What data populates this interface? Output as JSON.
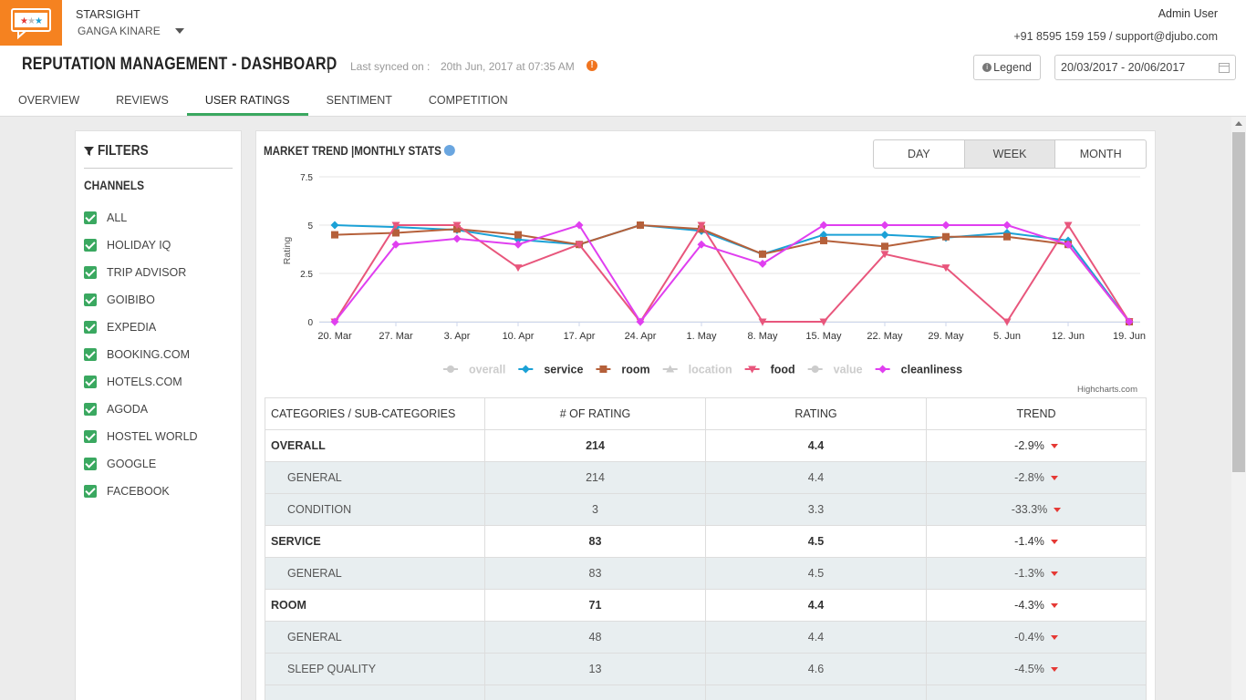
{
  "header": {
    "brand": "STARSIGHT",
    "property": "GANGA KINARE",
    "user": "Admin User",
    "contact": "+91 8595 159 159 / support@djubo.com"
  },
  "title": {
    "text": "REPUTATION MANAGEMENT - DASHBOARD",
    "sync_label": "Last synced on :",
    "sync_time": "20th Jun, 2017 at 07:35 AM"
  },
  "buttons": {
    "legend": "Legend",
    "date_range": "20/03/2017 - 20/06/2017"
  },
  "tabs": [
    {
      "label": "OVERVIEW",
      "active": false
    },
    {
      "label": "REVIEWS",
      "active": false
    },
    {
      "label": "USER RATINGS",
      "active": true
    },
    {
      "label": "SENTIMENT",
      "active": false
    },
    {
      "label": "COMPETITION",
      "active": false
    }
  ],
  "filters": {
    "title": "FILTERS",
    "section": "CHANNELS",
    "channels": [
      "ALL",
      "HOLIDAY IQ",
      "TRIP ADVISOR",
      "GOIBIBO",
      "EXPEDIA",
      "BOOKING.COM",
      "HOTELS.COM",
      "AGODA",
      "HOSTEL WORLD",
      "GOOGLE",
      "FACEBOOK"
    ]
  },
  "chart_data": {
    "type": "line",
    "title": "MARKET TREND |MONTHLY STATS",
    "y_label": "Rating",
    "credit": "Highcharts.com",
    "range_buttons": [
      {
        "label": "DAY",
        "active": false
      },
      {
        "label": "WEEK",
        "active": true
      },
      {
        "label": "MONTH",
        "active": false
      }
    ],
    "categories": [
      "20. Mar",
      "27. Mar",
      "3. Apr",
      "10. Apr",
      "17. Apr",
      "24. Apr",
      "1. May",
      "8. May",
      "15. May",
      "22. May",
      "29. May",
      "5. Jun",
      "12. Jun",
      "19. Jun"
    ],
    "ylim": [
      0,
      7.5
    ],
    "yticks": [
      0,
      2.5,
      5,
      7.5
    ],
    "grid": true,
    "series": [
      {
        "name": "overall",
        "visible": false,
        "marker": "circle"
      },
      {
        "name": "service",
        "visible": true,
        "marker": "diamond",
        "color": "#1ba1d6",
        "values": [
          5.0,
          4.9,
          4.75,
          4.25,
          4.0,
          5.0,
          4.7,
          3.5,
          4.5,
          4.5,
          4.35,
          4.6,
          4.2,
          0
        ]
      },
      {
        "name": "room",
        "visible": true,
        "marker": "square",
        "color": "#b5603a",
        "values": [
          4.5,
          4.6,
          4.8,
          4.5,
          4.0,
          5.0,
          4.8,
          3.5,
          4.2,
          3.9,
          4.4,
          4.4,
          4.0,
          0
        ]
      },
      {
        "name": "location",
        "visible": false,
        "marker": "triangle"
      },
      {
        "name": "food",
        "visible": true,
        "marker": "triangle-down",
        "color": "#e8567c",
        "values": [
          0,
          5.0,
          5.0,
          2.8,
          4.0,
          0,
          5.0,
          0,
          0,
          3.5,
          2.8,
          0,
          5.0,
          0
        ]
      },
      {
        "name": "value",
        "visible": false,
        "marker": "circle"
      },
      {
        "name": "cleanliness",
        "visible": true,
        "marker": "diamond",
        "color": "#e03ff0",
        "values": [
          0,
          4.0,
          4.3,
          4.0,
          5.0,
          0,
          4.0,
          3.0,
          5.0,
          5.0,
          5.0,
          5.0,
          4.0,
          0
        ]
      }
    ]
  },
  "table": {
    "columns": [
      "CATEGORIES / SUB-CATEGORIES",
      "# OF RATING",
      "RATING",
      "TREND"
    ],
    "rows": [
      {
        "sub": false,
        "cells": [
          "OVERALL",
          "214",
          "4.4",
          "-2.9%"
        ]
      },
      {
        "sub": true,
        "cells": [
          "GENERAL",
          "214",
          "4.4",
          "-2.8%"
        ]
      },
      {
        "sub": true,
        "cells": [
          "CONDITION",
          "3",
          "3.3",
          "-33.3%"
        ]
      },
      {
        "sub": false,
        "cells": [
          "SERVICE",
          "83",
          "4.5",
          "-1.4%"
        ]
      },
      {
        "sub": true,
        "cells": [
          "GENERAL",
          "83",
          "4.5",
          "-1.3%"
        ]
      },
      {
        "sub": false,
        "cells": [
          "ROOM",
          "71",
          "4.4",
          "-4.3%"
        ]
      },
      {
        "sub": true,
        "cells": [
          "GENERAL",
          "48",
          "4.4",
          "-0.4%"
        ]
      },
      {
        "sub": true,
        "cells": [
          "SLEEP QUALITY",
          "13",
          "4.6",
          "-4.5%"
        ]
      }
    ]
  }
}
